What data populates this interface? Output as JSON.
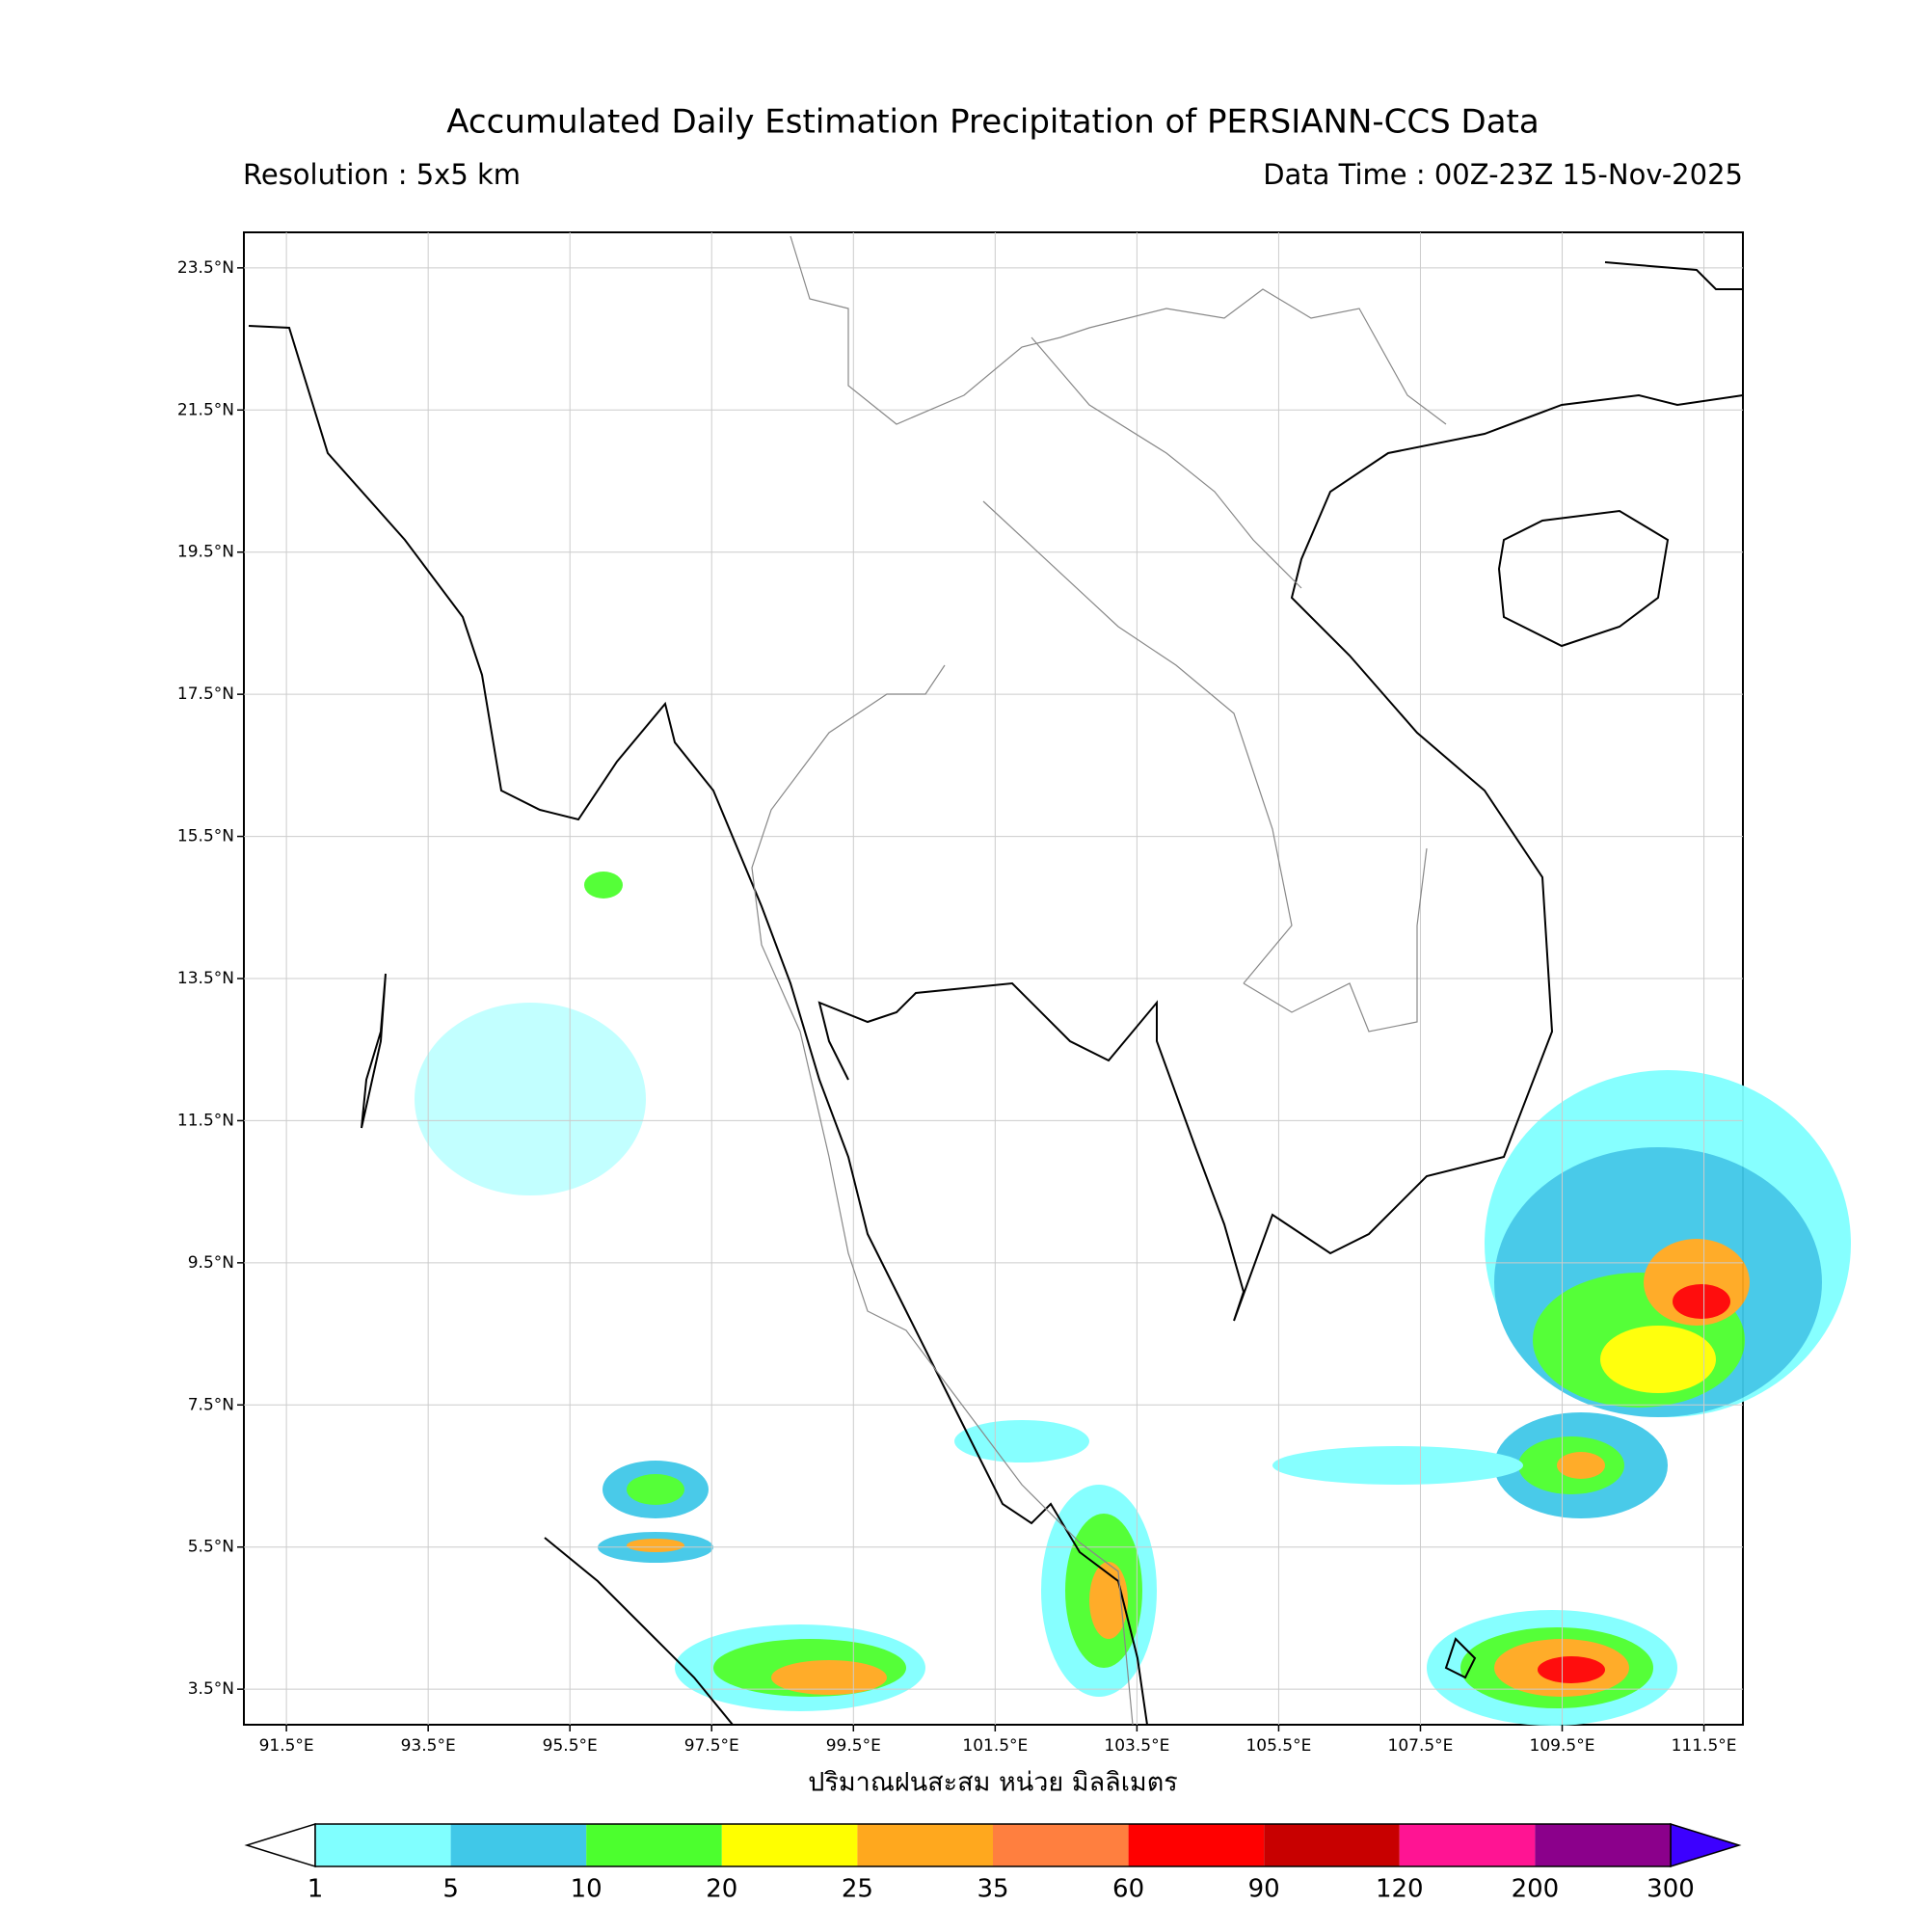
{
  "header": {
    "title": "Accumulated Daily Estimation Precipitation of PERSIANN-CCS Data",
    "resolution": "Resolution : 5x5 km",
    "data_time": "Data Time : 00Z-23Z 15-Nov-2025"
  },
  "map": {
    "xlim": [
      90.9,
      112.05
    ],
    "ylim": [
      3.0,
      24.0
    ],
    "xticks": [
      {
        "value": 91.5,
        "label": "91.5°E"
      },
      {
        "value": 93.5,
        "label": "93.5°E"
      },
      {
        "value": 95.5,
        "label": "95.5°E"
      },
      {
        "value": 97.5,
        "label": "97.5°E"
      },
      {
        "value": 99.5,
        "label": "99.5°E"
      },
      {
        "value": 101.5,
        "label": "101.5°E"
      },
      {
        "value": 103.5,
        "label": "103.5°E"
      },
      {
        "value": 105.5,
        "label": "105.5°E"
      },
      {
        "value": 107.5,
        "label": "107.5°E"
      },
      {
        "value": 109.5,
        "label": "109.5°E"
      },
      {
        "value": 111.5,
        "label": "111.5°E"
      }
    ],
    "yticks": [
      {
        "value": 3.5,
        "label": "3.5°N"
      },
      {
        "value": 5.5,
        "label": "5.5°N"
      },
      {
        "value": 7.5,
        "label": "7.5°N"
      },
      {
        "value": 9.5,
        "label": "9.5°N"
      },
      {
        "value": 11.5,
        "label": "11.5°N"
      },
      {
        "value": 13.5,
        "label": "13.5°N"
      },
      {
        "value": 15.5,
        "label": "15.5°N"
      },
      {
        "value": 17.5,
        "label": "17.5°N"
      },
      {
        "value": 19.5,
        "label": "19.5°N"
      },
      {
        "value": 21.5,
        "label": "21.5°N"
      },
      {
        "value": 23.5,
        "label": "23.5°N"
      }
    ],
    "xlabel": "ปริมาณฝนสะสม หน่วย มิลลิเมตร"
  },
  "colorbar": {
    "levels": [
      1,
      5,
      10,
      20,
      25,
      35,
      60,
      90,
      120,
      200,
      300
    ],
    "colors": [
      "#80ffff",
      "#40c8e8",
      "#4cff2e",
      "#ffff00",
      "#ffa81e",
      "#ff7f3f",
      "#ff0000",
      "#c80000",
      "#ff1493",
      "#8b008b"
    ],
    "under_color": "#ffffff",
    "over_color": "#3c00ff"
  }
}
